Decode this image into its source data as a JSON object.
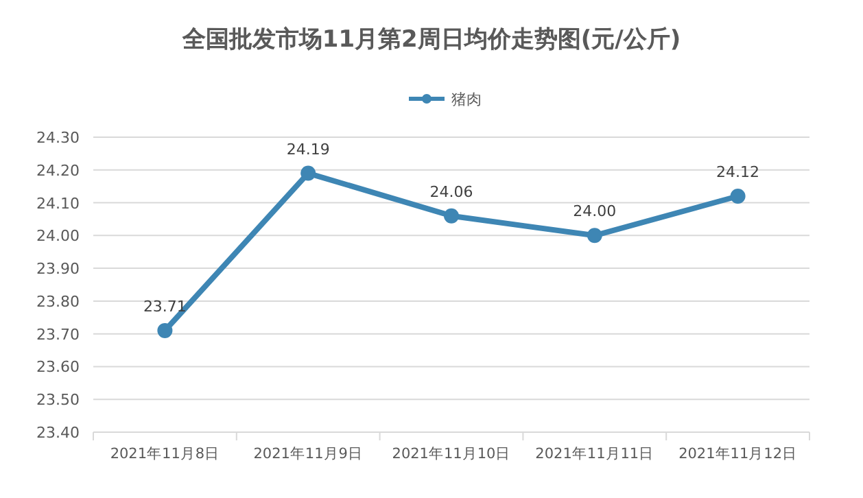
{
  "chart_data": {
    "type": "line",
    "title": "全国批发市场11月第2周日均价走势图(元/公斤)",
    "categories": [
      "2021年11月8日",
      "2021年11月9日",
      "2021年11月10日",
      "2021年11月11日",
      "2021年11月12日"
    ],
    "series": [
      {
        "name": "猪肉",
        "color": "#3e86b4",
        "values": [
          23.71,
          24.19,
          24.06,
          24.0,
          24.12
        ],
        "value_labels": [
          "23.71",
          "24.19",
          "24.06",
          "24.00",
          "24.12"
        ]
      }
    ],
    "ylim": [
      23.4,
      24.3
    ],
    "yticks": [
      {
        "value": 23.4,
        "label": "23.40"
      },
      {
        "value": 23.5,
        "label": "23.50"
      },
      {
        "value": 23.6,
        "label": "23.60"
      },
      {
        "value": 23.7,
        "label": "23.70"
      },
      {
        "value": 23.8,
        "label": "23.80"
      },
      {
        "value": 23.9,
        "label": "23.90"
      },
      {
        "value": 24.0,
        "label": "24.00"
      },
      {
        "value": 24.1,
        "label": "24.10"
      },
      {
        "value": 24.2,
        "label": "24.20"
      },
      {
        "value": 24.3,
        "label": "24.30"
      }
    ],
    "grid": "y",
    "legend": "top",
    "marker": "circle",
    "line_style": "solid"
  }
}
